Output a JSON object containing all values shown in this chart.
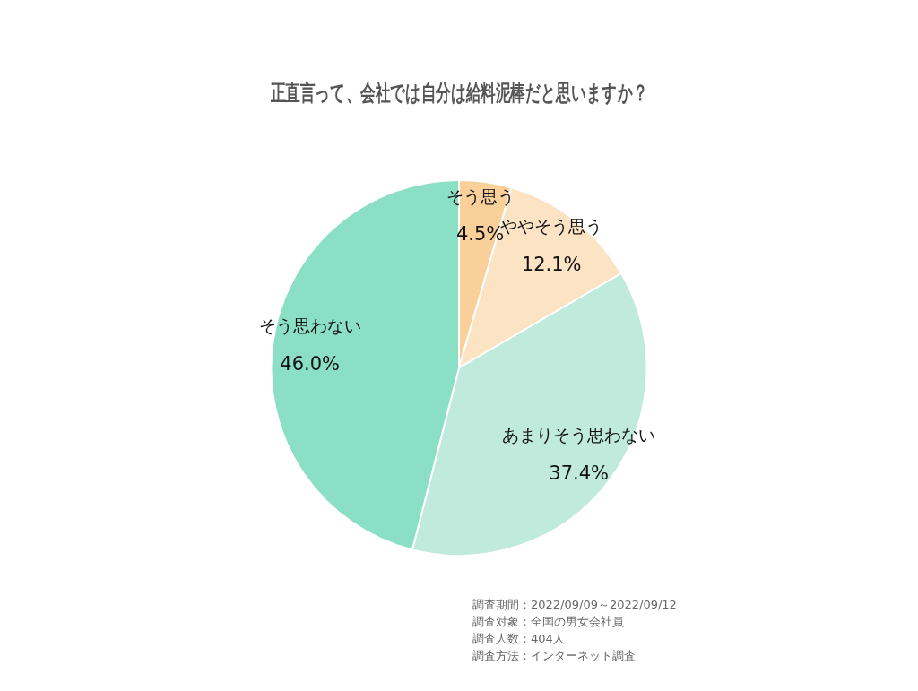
{
  "chart_data": {
    "type": "pie",
    "title": "正直言って、会社では自分は給料泥棒だと思いますか？",
    "categories": [
      "そう思う",
      "ややそう思う",
      "あまりそう思わない",
      "そう思わない"
    ],
    "values": [
      4.5,
      12.1,
      37.4,
      46.0
    ],
    "colors": [
      "#f9d09a",
      "#fbe3c3",
      "#bfeadc",
      "#8adfc4"
    ],
    "value_labels": [
      "4.5%",
      "12.1%",
      "37.4%",
      "46.0%"
    ],
    "annotations": [
      "調査期間：2022/09/09～2022/09/12",
      "調査対象：全国の男女会社員",
      "調査人数：404人",
      "調査方法：インターネット調査"
    ]
  }
}
